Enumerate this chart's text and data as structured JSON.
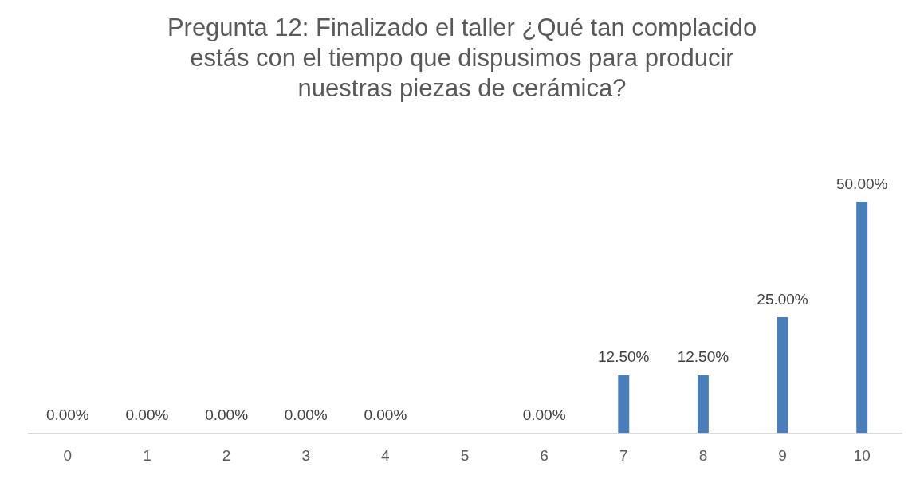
{
  "chart_data": {
    "type": "bar",
    "title": "Pregunta 12: Finalizado el taller ¿Qué tan complacido estás con el tiempo que dispusimos para producir nuestras piezas de cerámica?",
    "categories": [
      "0",
      "1",
      "2",
      "3",
      "4",
      "5",
      "6",
      "7",
      "8",
      "9",
      "10"
    ],
    "values": [
      0,
      0,
      0,
      0,
      0,
      null,
      0,
      12.5,
      12.5,
      25,
      50
    ],
    "value_labels": [
      "0.00%",
      "0.00%",
      "0.00%",
      "0.00%",
      "0.00%",
      null,
      "0.00%",
      "12.50%",
      "12.50%",
      "25.00%",
      "50.00%"
    ],
    "color": "#4a7ebb",
    "grid": false,
    "legend": false
  }
}
